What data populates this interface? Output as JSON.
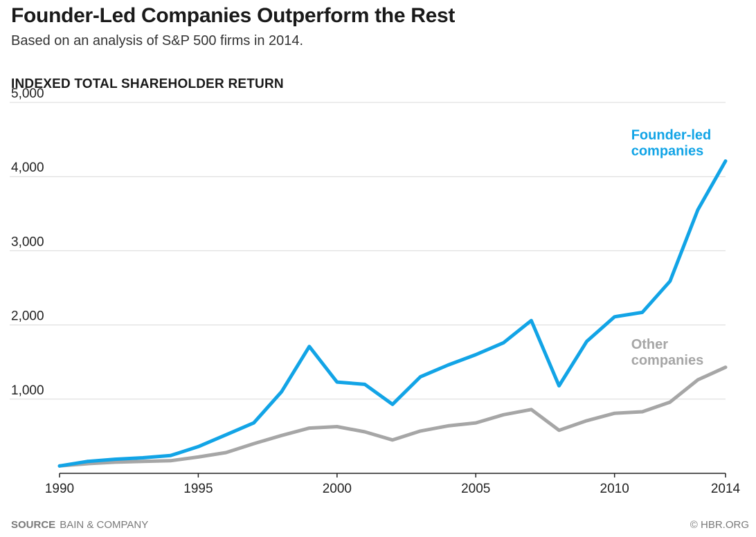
{
  "title": "Founder-Led Companies Outperform the Rest",
  "subtitle": "Based on an analysis of S&P 500 firms in 2014.",
  "footer": {
    "source_label": "SOURCE",
    "source_text": "BAIN & COMPANY",
    "credit": "© HBR.ORG"
  },
  "chart_data": {
    "type": "line",
    "title": "Founder-Led Companies Outperform the Rest",
    "subtitle": "Based on an analysis of S&P 500 firms in 2014.",
    "ylabel": "INDEXED TOTAL SHAREHOLDER RETURN",
    "xlabel": "",
    "xlim": [
      1990,
      2014
    ],
    "ylim": [
      0,
      5000
    ],
    "yticks": [
      1000,
      2000,
      3000,
      4000,
      5000
    ],
    "ytick_labels": [
      "1,000",
      "2,000",
      "3,000",
      "4,000",
      "5,000"
    ],
    "xticks": [
      1990,
      1995,
      2000,
      2005,
      2010,
      2014
    ],
    "xtick_labels": [
      "1990",
      "1995",
      "2000",
      "2005",
      "2010",
      "2014"
    ],
    "grid": "horizontal",
    "legend": "inline labels",
    "x": [
      1990,
      1991,
      1992,
      1993,
      1994,
      1995,
      1996,
      1997,
      1998,
      1999,
      2000,
      2001,
      2002,
      2003,
      2004,
      2005,
      2006,
      2007,
      2008,
      2009,
      2010,
      2011,
      2012,
      2013,
      2014
    ],
    "series": [
      {
        "name": "Founder-led companies",
        "label_lines": [
          "Founder-led",
          "companies"
        ],
        "color": "#12a4e6",
        "values": [
          100,
          160,
          190,
          210,
          240,
          360,
          520,
          680,
          1100,
          1710,
          1230,
          1200,
          930,
          1300,
          1460,
          1600,
          1760,
          2060,
          1180,
          1780,
          2110,
          2170,
          2590,
          3550,
          4210
        ]
      },
      {
        "name": "Other companies",
        "label_lines": [
          "Other",
          "companies"
        ],
        "color": "#a6a6a6",
        "values": [
          100,
          130,
          150,
          160,
          170,
          220,
          280,
          400,
          510,
          610,
          630,
          560,
          450,
          570,
          640,
          680,
          790,
          860,
          580,
          710,
          810,
          830,
          960,
          1260,
          1430
        ]
      }
    ]
  }
}
